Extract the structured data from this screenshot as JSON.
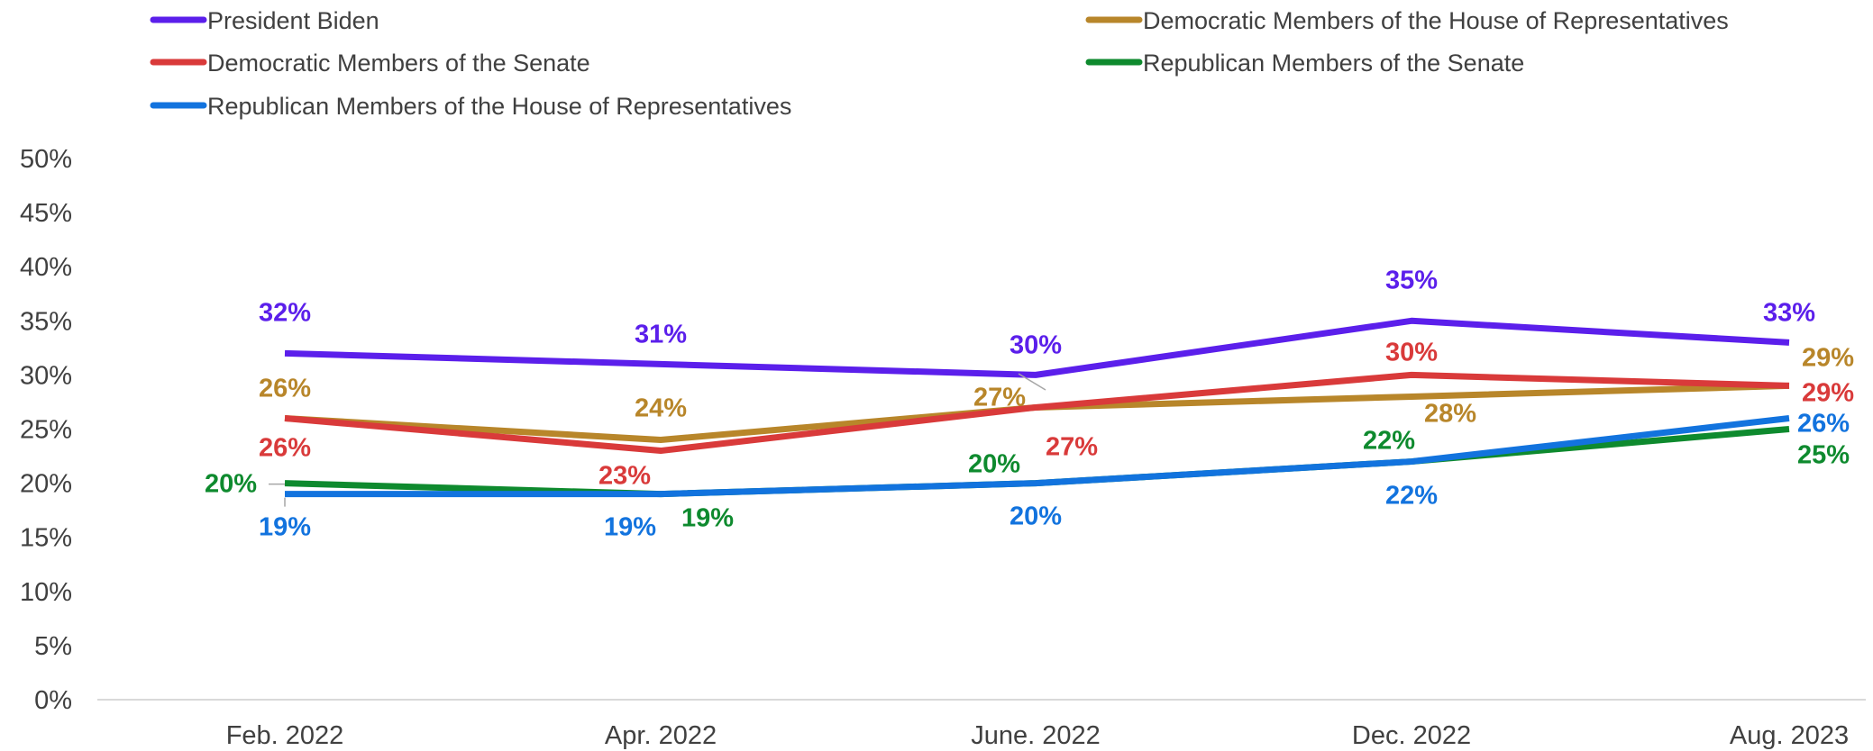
{
  "chart_data": {
    "type": "line",
    "categories": [
      "Feb. 2022",
      "Apr. 2022",
      "June. 2022",
      "Dec. 2022",
      "Aug. 2023"
    ],
    "ylim": [
      0,
      50
    ],
    "yticks": [
      0,
      5,
      10,
      15,
      20,
      25,
      30,
      35,
      40,
      45,
      50
    ],
    "ytick_labels": [
      "0%",
      "5%",
      "10%",
      "15%",
      "20%",
      "25%",
      "30%",
      "35%",
      "40%",
      "45%",
      "50%"
    ],
    "grid": false,
    "legend_position": "top",
    "series": [
      {
        "name": "President Biden",
        "color": "#5B1FEB",
        "values": [
          32,
          31,
          30,
          35,
          33
        ],
        "labels": [
          "32%",
          "31%",
          "30%",
          "35%",
          "33%"
        ]
      },
      {
        "name": "Democratic Members of the House of Representatives",
        "color": "#B8862A",
        "values": [
          26,
          24,
          27,
          28,
          29
        ],
        "labels": [
          "26%",
          "24%",
          "27%",
          "28%",
          "29%"
        ]
      },
      {
        "name": "Democratic Members of the Senate",
        "color": "#D93A3A",
        "values": [
          26,
          23,
          27,
          30,
          29
        ],
        "labels": [
          "26%",
          "23%",
          "27%",
          "30%",
          "29%"
        ]
      },
      {
        "name": "Republican Members of the Senate",
        "color": "#0E8A2E",
        "values": [
          20,
          19,
          20,
          22,
          25
        ],
        "labels": [
          "20%",
          "19%",
          "20%",
          "22%",
          "25%"
        ]
      },
      {
        "name": "Republican Members of the House of Representatives",
        "color": "#1273DE",
        "values": [
          19,
          19,
          20,
          22,
          26
        ],
        "labels": [
          "19%",
          "19%",
          "20%",
          "22%",
          "26%"
        ]
      }
    ]
  }
}
